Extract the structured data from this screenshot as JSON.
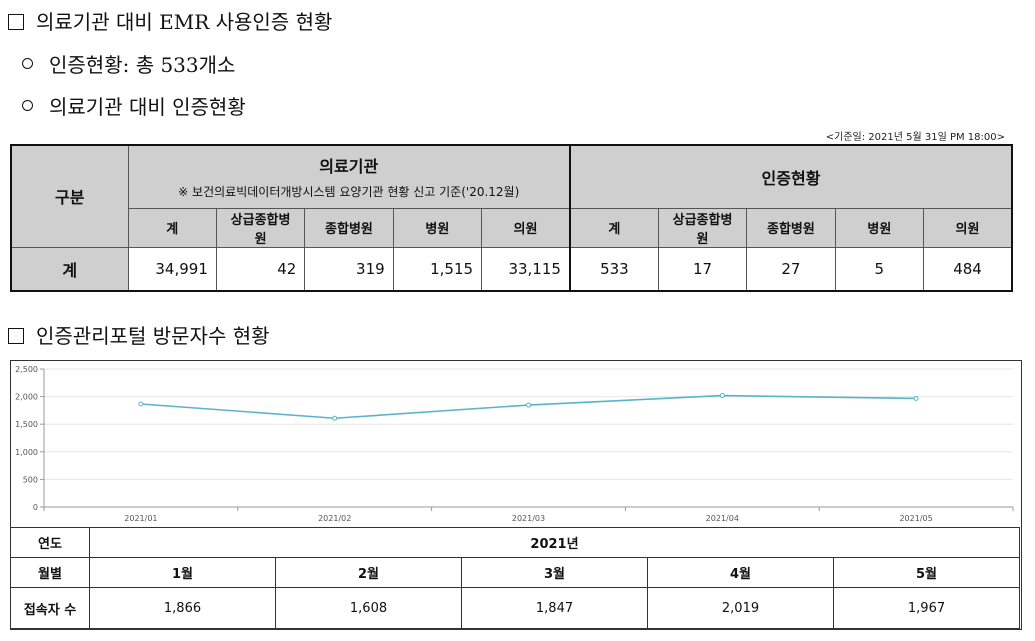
{
  "headings": {
    "emr_title": "의료기관 대비 EMR 사용인증 현황",
    "cert_total": "인증현황: 총 533개소",
    "cert_vs_institutions": "의료기관 대비 인증현황",
    "portal_title": "인증관리포털 방문자수 현황"
  },
  "base_date": "<기준일: 2021년 5월 31일 PM 18:00>",
  "cert_table": {
    "row_header": "구분",
    "institutions_group": "의료기관",
    "institutions_note": "※ 보건의료빅데이터개방시스템 요양기관 현황 신고 기준('20.12월)",
    "certified_group": "인증현황",
    "columns": [
      "계",
      "상급종합병원",
      "종합병원",
      "병원",
      "의원"
    ],
    "total_label": "계",
    "institutions_values": [
      "34,991",
      "42",
      "319",
      "1,515",
      "33,115"
    ],
    "certified_values": [
      "533",
      "17",
      "27",
      "5",
      "484"
    ]
  },
  "chart_data": {
    "type": "line",
    "title": "",
    "xlabel": "",
    "ylabel": "",
    "categories": [
      "2021/01",
      "2021/02",
      "2021/03",
      "2021/04",
      "2021/05"
    ],
    "values": [
      1866,
      1608,
      1847,
      2019,
      1967
    ],
    "yticks": [
      "0",
      "500",
      "1,000",
      "1,500",
      "2,000",
      "2,500"
    ],
    "ylim": [
      0,
      2500
    ],
    "grid": "horizontal",
    "line_color": "#5ab4c8"
  },
  "visitor_table": {
    "year_label": "연도",
    "year_value": "2021년",
    "month_label": "월별",
    "months": [
      "1월",
      "2월",
      "3월",
      "4월",
      "5월"
    ],
    "visitors_label": "접속자 수",
    "visitors": [
      "1,866",
      "1,608",
      "1,847",
      "2,019",
      "1,967"
    ]
  }
}
